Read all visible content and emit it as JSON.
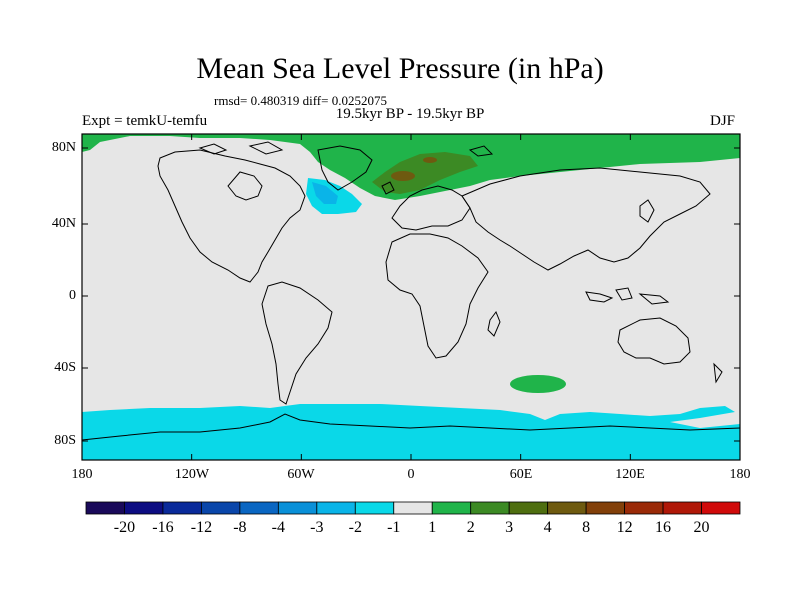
{
  "header": {
    "title": "Mean Sea Level Pressure (in hPa)",
    "stats": "rmsd= 0.480319 diff= 0.0252075",
    "period": "19.5kyr BP - 19.5kyr BP",
    "experiment": "Expt = temkU-temfu",
    "season": "DJF"
  },
  "map": {
    "lat_ticks": [
      "80N",
      "40N",
      "0",
      "40S",
      "80S"
    ],
    "lon_ticks": [
      "180",
      "120W",
      "60W",
      "0",
      "60E",
      "120E",
      "180"
    ]
  },
  "colorbar": {
    "colors": [
      "#1a0a5a",
      "#0d0d82",
      "#0a2a9a",
      "#0a46aa",
      "#0a66c2",
      "#0a90d8",
      "#0ab4e8",
      "#0ad8e8",
      "#e6e6e6",
      "#20b44a",
      "#3c8a24",
      "#4e6e10",
      "#6e5a10",
      "#82400a",
      "#9a2a08",
      "#b01808",
      "#d00a0a"
    ],
    "labels": [
      "-20",
      "-16",
      "-12",
      "-8",
      "-4",
      "-3",
      "-2",
      "-1",
      "1",
      "2",
      "3",
      "4",
      "8",
      "12",
      "16",
      "20"
    ]
  },
  "colors": {
    "ocean_land_neutral": "#e6e6e6",
    "negative_small": "#0ad8e8",
    "negative_mid": "#0ab4e8",
    "positive_small": "#20b44a",
    "positive_mid": "#3c8a24",
    "positive_high": "#6e5a10"
  }
}
